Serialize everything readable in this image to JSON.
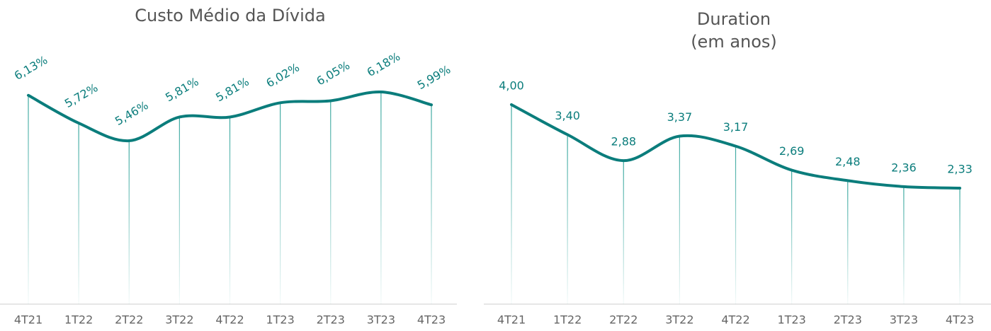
{
  "chart_data": [
    {
      "type": "line",
      "title": "Custo Médio da Dívida",
      "categories": [
        "4T21",
        "1T22",
        "2T22",
        "3T22",
        "4T22",
        "1T23",
        "2T23",
        "3T23",
        "4T23"
      ],
      "values": [
        6.13,
        5.72,
        5.46,
        5.81,
        5.81,
        6.02,
        6.05,
        6.18,
        5.99
      ],
      "value_labels": [
        "6,13%",
        "5,72%",
        "5,46%",
        "5,81%",
        "5,81%",
        "6,02%",
        "6,05%",
        "6,18%",
        "5,99%"
      ],
      "color": "#0b7d7c",
      "label_rotation": -30
    },
    {
      "type": "line",
      "title": "Duration",
      "subtitle": "(em anos)",
      "categories": [
        "4T21",
        "1T22",
        "2T22",
        "3T22",
        "4T22",
        "1T23",
        "2T23",
        "3T23",
        "4T23"
      ],
      "values": [
        4.0,
        3.4,
        2.88,
        3.37,
        3.17,
        2.69,
        2.48,
        2.36,
        2.33
      ],
      "value_labels": [
        "4,00",
        "3,40",
        "2,88",
        "3,37",
        "3,17",
        "2,69",
        "2,48",
        "2,36",
        "2,33"
      ],
      "color": "#0b7d7c",
      "label_rotation": 0
    }
  ]
}
